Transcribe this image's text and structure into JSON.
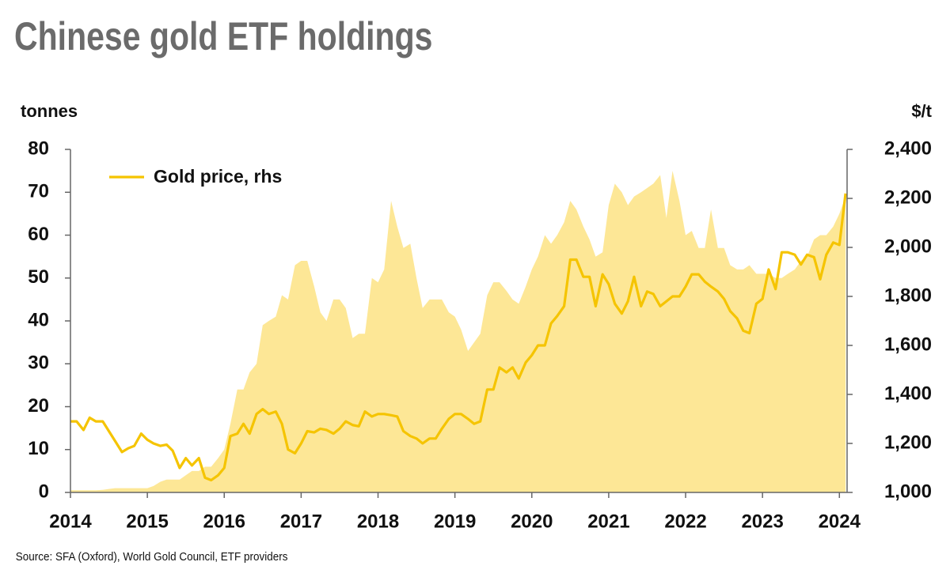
{
  "chart_data": {
    "type": "area-line",
    "title": "Chinese gold ETF holdings",
    "y_label": "tonnes",
    "y2_label": "$/t",
    "source": "Source: SFA (Oxford), World Gold Council, ETF providers",
    "x": [
      2014,
      2014.08,
      2014.17,
      2014.25,
      2014.33,
      2014.42,
      2014.5,
      2014.58,
      2014.67,
      2014.75,
      2014.83,
      2014.92,
      2015,
      2015.08,
      2015.17,
      2015.25,
      2015.33,
      2015.42,
      2015.5,
      2015.58,
      2015.67,
      2015.75,
      2015.83,
      2015.92,
      2016,
      2016.08,
      2016.17,
      2016.25,
      2016.33,
      2016.42,
      2016.5,
      2016.58,
      2016.67,
      2016.75,
      2016.83,
      2016.92,
      2017,
      2017.08,
      2017.17,
      2017.25,
      2017.33,
      2017.42,
      2017.5,
      2017.58,
      2017.67,
      2017.75,
      2017.83,
      2017.92,
      2018,
      2018.08,
      2018.17,
      2018.25,
      2018.33,
      2018.42,
      2018.5,
      2018.58,
      2018.67,
      2018.75,
      2018.83,
      2018.92,
      2019,
      2019.08,
      2019.17,
      2019.25,
      2019.33,
      2019.42,
      2019.5,
      2019.58,
      2019.67,
      2019.75,
      2019.83,
      2019.92,
      2020,
      2020.08,
      2020.17,
      2020.25,
      2020.33,
      2020.42,
      2020.5,
      2020.58,
      2020.67,
      2020.75,
      2020.83,
      2020.92,
      2021,
      2021.08,
      2021.17,
      2021.25,
      2021.33,
      2021.42,
      2021.5,
      2021.58,
      2021.67,
      2021.75,
      2021.83,
      2021.92,
      2022,
      2022.08,
      2022.17,
      2022.25,
      2022.33,
      2022.42,
      2022.5,
      2022.58,
      2022.67,
      2022.75,
      2022.83,
      2022.92,
      2023,
      2023.08,
      2023.17,
      2023.25,
      2023.33,
      2023.42,
      2023.5,
      2023.58,
      2023.67,
      2023.75,
      2023.83,
      2023.92,
      2024,
      2024.08
    ],
    "series": [
      {
        "type": "area",
        "color": "#fde796",
        "values": [
          0.5,
          0.5,
          0.5,
          0.5,
          0.5,
          0.6,
          0.8,
          1,
          1,
          1,
          1,
          1,
          1,
          1.5,
          2.5,
          3,
          3,
          3,
          4,
          5,
          5,
          6,
          6,
          8,
          10,
          16,
          24,
          24,
          28,
          30,
          39,
          40,
          41,
          46,
          45,
          53,
          54,
          54,
          48,
          42,
          40,
          45,
          45,
          43,
          36,
          37,
          37,
          50,
          49,
          52,
          68,
          62,
          57,
          58,
          50,
          43,
          45,
          45,
          45,
          42,
          41,
          38,
          33,
          35,
          37,
          46,
          49,
          49,
          47,
          45,
          44,
          48,
          52,
          55,
          60,
          58,
          60,
          63,
          68,
          66,
          62,
          59,
          55,
          56,
          67,
          72,
          70,
          67,
          69,
          70,
          71,
          72,
          74,
          64,
          75,
          68,
          60,
          61,
          57,
          57,
          66,
          57,
          57,
          53,
          52,
          52,
          53,
          51,
          51,
          51,
          50,
          50,
          51,
          52,
          54,
          55,
          59,
          60,
          60,
          62,
          65,
          69
        ]
      },
      {
        "type": "line",
        "name": "Gold price, rhs",
        "color": "#f5c400",
        "axis": "y2",
        "values": [
          1290,
          1290,
          1255,
          1305,
          1290,
          1290,
          1250,
          1210,
          1165,
          1180,
          1190,
          1240,
          1215,
          1200,
          1190,
          1195,
          1170,
          1100,
          1140,
          1110,
          1140,
          1060,
          1050,
          1070,
          1100,
          1230,
          1240,
          1280,
          1240,
          1320,
          1340,
          1320,
          1330,
          1280,
          1175,
          1160,
          1200,
          1250,
          1245,
          1260,
          1255,
          1240,
          1260,
          1290,
          1275,
          1270,
          1330,
          1310,
          1320,
          1320,
          1315,
          1310,
          1250,
          1230,
          1220,
          1200,
          1220,
          1220,
          1260,
          1300,
          1320,
          1320,
          1300,
          1280,
          1290,
          1420,
          1420,
          1510,
          1490,
          1510,
          1465,
          1530,
          1560,
          1600,
          1600,
          1690,
          1720,
          1760,
          1950,
          1950,
          1880,
          1880,
          1760,
          1890,
          1850,
          1770,
          1730,
          1780,
          1880,
          1760,
          1820,
          1810,
          1760,
          1780,
          1800,
          1800,
          1840,
          1890,
          1890,
          1860,
          1840,
          1820,
          1790,
          1740,
          1710,
          1660,
          1650,
          1770,
          1790,
          1910,
          1830,
          1980,
          1980,
          1970,
          1930,
          1970,
          1960,
          1870,
          1970,
          2020,
          2010,
          2220
        ]
      }
    ],
    "xlim": [
      2014,
      2024.1
    ],
    "xticks": [
      2014,
      2015,
      2016,
      2017,
      2018,
      2019,
      2020,
      2021,
      2022,
      2023,
      2024
    ],
    "ylim": [
      0,
      80
    ],
    "yticks": [
      0,
      10,
      20,
      30,
      40,
      50,
      60,
      70,
      80
    ],
    "y2lim": [
      1000,
      2400
    ],
    "y2ticks": [
      {
        "value": 1000,
        "label": "1,000"
      },
      {
        "value": 1200,
        "label": "1,200"
      },
      {
        "value": 1400,
        "label": "1,400"
      },
      {
        "value": 1600,
        "label": "1,600"
      },
      {
        "value": 1800,
        "label": "1,800"
      },
      {
        "value": 2000,
        "label": "2,000"
      },
      {
        "value": 2200,
        "label": "2,200"
      },
      {
        "value": 2400,
        "label": "2,400"
      }
    ],
    "legend": "top-left"
  }
}
